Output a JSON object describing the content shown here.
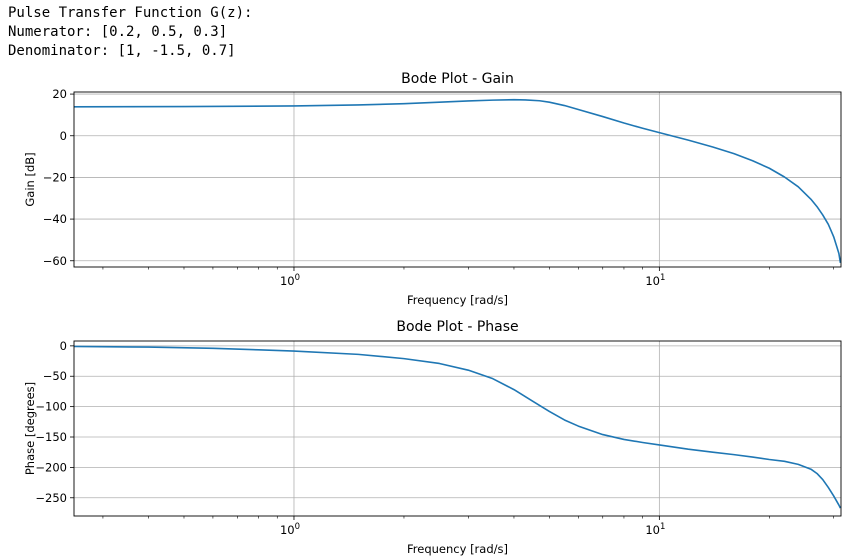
{
  "header": {
    "line1": "Pulse Transfer Function G(z):",
    "line2": "Numerator: [0.2, 0.5, 0.3]",
    "line3": "Denominator: [1, -1.5, 0.7]"
  },
  "colors": {
    "line": "#1f77b4",
    "grid": "#b0b0b0"
  },
  "chart_data": [
    {
      "type": "line",
      "title": "Bode Plot - Gain",
      "xlabel": "Frequency [rad/s]",
      "ylabel": "Gain [dB]",
      "xscale": "log",
      "xlim": [
        0.25,
        31.4159
      ],
      "ylim": [
        -63,
        21
      ],
      "xticks": [
        {
          "value": 1,
          "base": "10",
          "exp": "0"
        },
        {
          "value": 10,
          "base": "10",
          "exp": "1"
        }
      ],
      "yticks": [
        20,
        0,
        -20,
        -40,
        -60
      ],
      "grid": true,
      "series": [
        {
          "x": [
            0.25,
            0.5,
            1,
            1.5,
            2,
            2.5,
            3,
            3.5,
            4,
            4.3,
            4.7,
            5,
            5.5,
            6,
            7,
            8,
            9,
            10,
            12,
            14,
            16,
            18,
            20,
            22,
            24,
            26,
            27,
            28,
            29,
            29.5,
            30,
            30.5,
            31,
            31.3
          ],
          "y": [
            13.9,
            14.0,
            14.3,
            14.8,
            15.4,
            16.1,
            16.7,
            17.1,
            17.3,
            17.2,
            16.8,
            16.1,
            14.5,
            12.6,
            9.2,
            6.1,
            3.6,
            1.5,
            -2.1,
            -5.4,
            -8.6,
            -12.0,
            -15.6,
            -19.8,
            -24.5,
            -30.5,
            -34.0,
            -38.0,
            -42.5,
            -45.5,
            -48.5,
            -52.5,
            -56.5,
            -61.0
          ]
        }
      ]
    },
    {
      "type": "line",
      "title": "Bode Plot - Phase",
      "xlabel": "Frequency [rad/s]",
      "ylabel": "Phase [degrees]",
      "xscale": "log",
      "xlim": [
        0.25,
        31.4159
      ],
      "ylim": [
        -280,
        8
      ],
      "xticks": [
        {
          "value": 1,
          "base": "10",
          "exp": "0"
        },
        {
          "value": 10,
          "base": "10",
          "exp": "1"
        }
      ],
      "yticks": [
        0,
        -50,
        -100,
        -150,
        -200,
        -250
      ],
      "grid": true,
      "series": [
        {
          "x": [
            0.25,
            0.4,
            0.6,
            0.8,
            1,
            1.5,
            2,
            2.5,
            3,
            3.5,
            4,
            4.5,
            5,
            5.5,
            6,
            7,
            8,
            9,
            10,
            12,
            14,
            16,
            18,
            20,
            22,
            24,
            26,
            27,
            28,
            29,
            30,
            31,
            31.3
          ],
          "y": [
            -1,
            -2,
            -4,
            -6.5,
            -8.5,
            -14,
            -21,
            -29,
            -40,
            -54,
            -72,
            -91,
            -108,
            -122,
            -132,
            -146,
            -154,
            -159,
            -163,
            -170,
            -175,
            -179,
            -183,
            -187,
            -190,
            -195,
            -203,
            -210,
            -220,
            -233,
            -247,
            -262,
            -267
          ]
        }
      ]
    }
  ]
}
